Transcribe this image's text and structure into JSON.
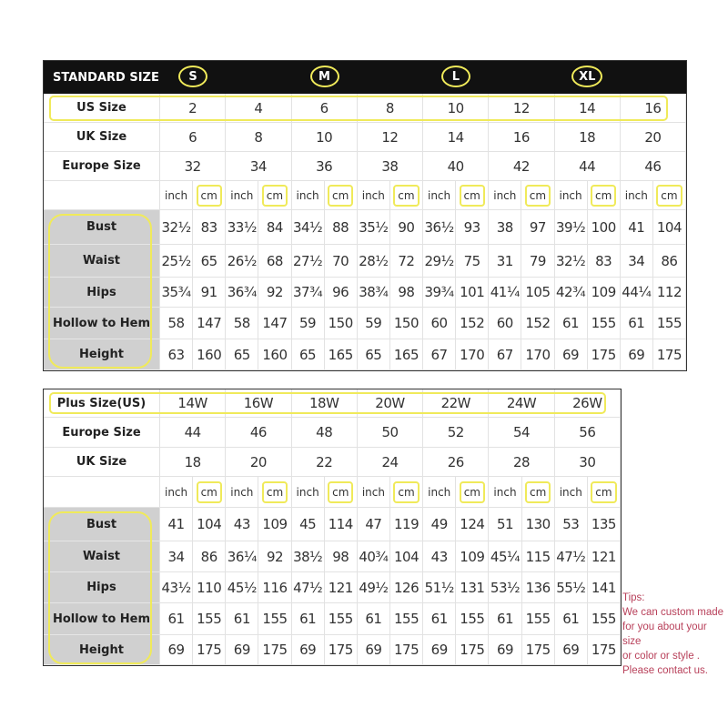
{
  "colors": {
    "header_bg": "#111111",
    "highlight": "#f0ea5a",
    "label_bg": "#d0d0d0",
    "tips_text": "#b8405a"
  },
  "standard": {
    "title": "STANDARD SIZE",
    "size_letters": [
      "S",
      "M",
      "L",
      "XL"
    ],
    "size_rows": [
      {
        "label": "US Size",
        "values": [
          "2",
          "4",
          "6",
          "8",
          "10",
          "12",
          "14",
          "16"
        ]
      },
      {
        "label": "UK Size",
        "values": [
          "6",
          "8",
          "10",
          "12",
          "14",
          "16",
          "18",
          "20"
        ]
      },
      {
        "label": "Europe Size",
        "values": [
          "32",
          "34",
          "36",
          "38",
          "40",
          "42",
          "44",
          "46"
        ]
      }
    ],
    "units": [
      "inch",
      "cm"
    ],
    "measure_rows": [
      {
        "label": "Bust",
        "values": [
          "32½",
          "83",
          "33½",
          "84",
          "34½",
          "88",
          "35½",
          "90",
          "36½",
          "93",
          "38",
          "97",
          "39½",
          "100",
          "41",
          "104"
        ]
      },
      {
        "label": "Waist",
        "values": [
          "25½",
          "65",
          "26½",
          "68",
          "27½",
          "70",
          "28½",
          "72",
          "29½",
          "75",
          "31",
          "79",
          "32½",
          "83",
          "34",
          "86"
        ]
      },
      {
        "label": "Hips",
        "values": [
          "35¾",
          "91",
          "36¾",
          "92",
          "37¾",
          "96",
          "38¾",
          "98",
          "39¾",
          "101",
          "41¼",
          "105",
          "42¾",
          "109",
          "44¼",
          "112"
        ]
      },
      {
        "label": "Hollow to Hem",
        "values": [
          "58",
          "147",
          "58",
          "147",
          "59",
          "150",
          "59",
          "150",
          "60",
          "152",
          "60",
          "152",
          "61",
          "155",
          "61",
          "155"
        ]
      },
      {
        "label": "Height",
        "values": [
          "63",
          "160",
          "65",
          "160",
          "65",
          "165",
          "65",
          "165",
          "67",
          "170",
          "67",
          "170",
          "69",
          "175",
          "69",
          "175"
        ]
      }
    ]
  },
  "plus": {
    "size_rows": [
      {
        "label": "Plus Size(US)",
        "values": [
          "14W",
          "16W",
          "18W",
          "20W",
          "22W",
          "24W",
          "26W"
        ]
      },
      {
        "label": "Europe Size",
        "values": [
          "44",
          "46",
          "48",
          "50",
          "52",
          "54",
          "56"
        ]
      },
      {
        "label": "UK Size",
        "values": [
          "18",
          "20",
          "22",
          "24",
          "26",
          "28",
          "30"
        ]
      }
    ],
    "units": [
      "inch",
      "cm"
    ],
    "measure_rows": [
      {
        "label": "Bust",
        "values": [
          "41",
          "104",
          "43",
          "109",
          "45",
          "114",
          "47",
          "119",
          "49",
          "124",
          "51",
          "130",
          "53",
          "135"
        ]
      },
      {
        "label": "Waist",
        "values": [
          "34",
          "86",
          "36¼",
          "92",
          "38½",
          "98",
          "40¾",
          "104",
          "43",
          "109",
          "45¼",
          "115",
          "47½",
          "121"
        ]
      },
      {
        "label": "Hips",
        "values": [
          "43½",
          "110",
          "45½",
          "116",
          "47½",
          "121",
          "49½",
          "126",
          "51½",
          "131",
          "53½",
          "136",
          "55½",
          "141"
        ]
      },
      {
        "label": "Hollow to Hem",
        "values": [
          "61",
          "155",
          "61",
          "155",
          "61",
          "155",
          "61",
          "155",
          "61",
          "155",
          "61",
          "155",
          "61",
          "155"
        ]
      },
      {
        "label": "Height",
        "values": [
          "69",
          "175",
          "69",
          "175",
          "69",
          "175",
          "69",
          "175",
          "69",
          "175",
          "69",
          "175",
          "69",
          "175"
        ]
      }
    ]
  },
  "tips": {
    "title": "Tips:",
    "lines": [
      "We can custom made",
      "for you about your size",
      "or color or style .",
      "Please contact us."
    ]
  }
}
